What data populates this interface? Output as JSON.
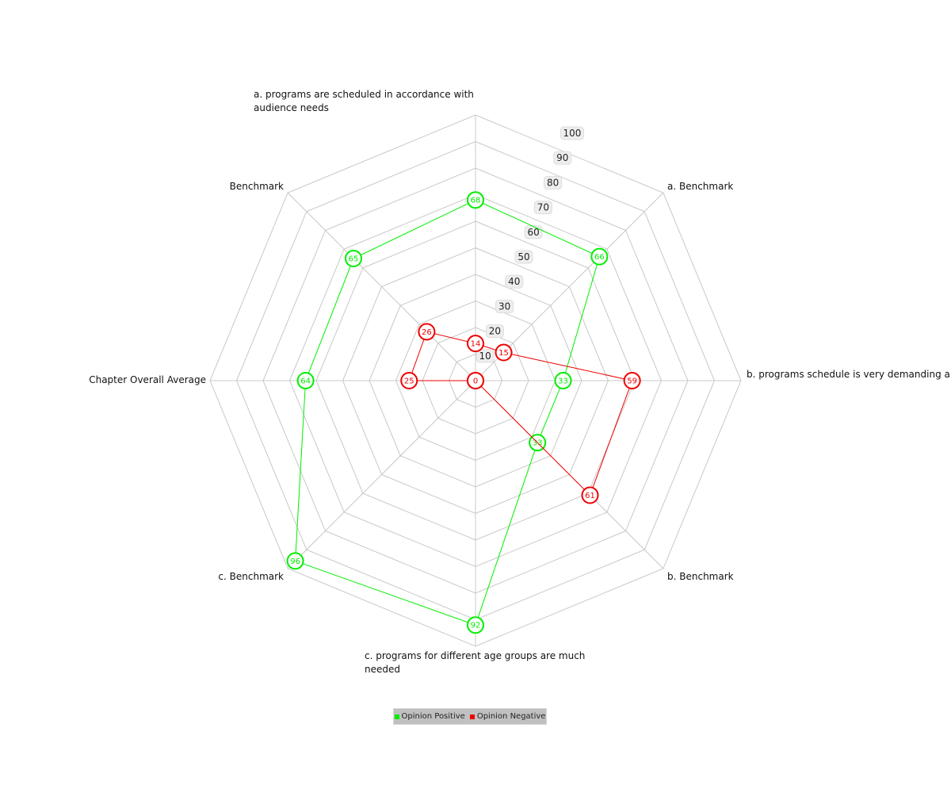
{
  "chart_data": {
    "type": "radar",
    "axes": [
      [
        "a. programs are scheduled in accordance with",
        "audience needs"
      ],
      [
        "a. Benchmark"
      ],
      [
        "b. programs schedule is very demanding a"
      ],
      [
        "b. Benchmark"
      ],
      [
        "c. programs for different age groups are much",
        "needed"
      ],
      [
        "c. Benchmark"
      ],
      [
        "Chapter Overall Average"
      ],
      [
        "Benchmark"
      ]
    ],
    "rlim": [
      0,
      100
    ],
    "ticks": [
      10,
      20,
      30,
      40,
      50,
      60,
      70,
      80,
      90,
      100
    ],
    "grid": true,
    "legend_position": "bottom",
    "series": [
      {
        "name": "Opinion Positive",
        "color": "#00ee00",
        "values": [
          68,
          66,
          33,
          33,
          92,
          96,
          64,
          65
        ]
      },
      {
        "name": "Opinion Negative",
        "color": "#ee0000",
        "values": [
          14,
          15,
          59,
          61,
          0,
          0,
          25,
          26
        ]
      }
    ]
  }
}
